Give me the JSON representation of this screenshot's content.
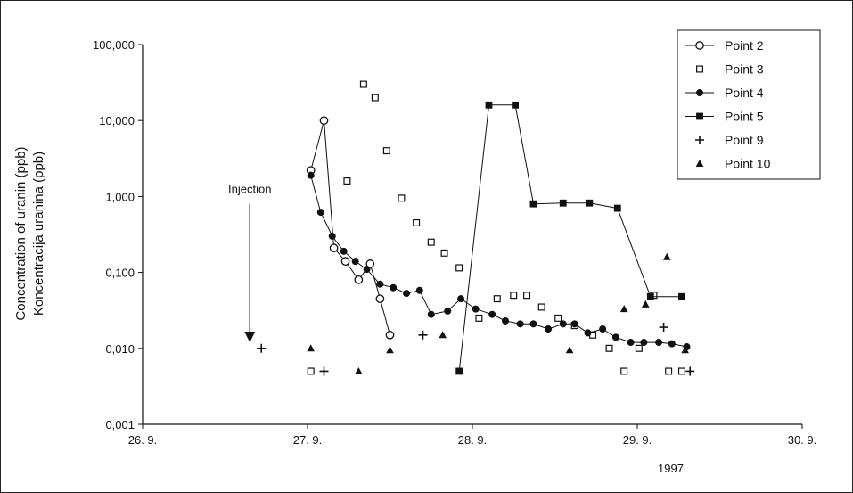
{
  "chart_data": {
    "type": "line",
    "title": "",
    "ylabel_lines": [
      "Concentration of uranin (ppb)",
      "Koncentracija uranina (ppb)"
    ],
    "xlabel": "1997",
    "y_scale": "log",
    "ylim": [
      0.001,
      100
    ],
    "xlim": [
      26.9,
      30.9
    ],
    "y_ticks": [
      {
        "value": 100,
        "label": "100,000"
      },
      {
        "value": 10,
        "label": "10,000"
      },
      {
        "value": 1,
        "label": "1,000"
      },
      {
        "value": 0.1,
        "label": "0,100"
      },
      {
        "value": 0.01,
        "label": "0,010"
      },
      {
        "value": 0.001,
        "label": "0,001"
      }
    ],
    "x_ticks": [
      {
        "value": 26.9,
        "label": "26. 9."
      },
      {
        "value": 27.9,
        "label": "27. 9."
      },
      {
        "value": 28.9,
        "label": "28. 9."
      },
      {
        "value": 29.9,
        "label": "29. 9."
      },
      {
        "value": 30.9,
        "label": "30. 9."
      }
    ],
    "grid": false,
    "legend_position": "top-right",
    "annotation": {
      "text": "Injection",
      "x": 27.55,
      "y_top": 0.8,
      "y_bottom": 0.012
    },
    "series": [
      {
        "name": "Point 2",
        "marker": "open-circle",
        "line": true,
        "points": [
          [
            27.92,
            2.2
          ],
          [
            28.0,
            10.0
          ],
          [
            28.06,
            0.21
          ],
          [
            28.13,
            0.14
          ],
          [
            28.21,
            0.08
          ],
          [
            28.28,
            0.13
          ],
          [
            28.34,
            0.045
          ],
          [
            28.4,
            0.015
          ]
        ]
      },
      {
        "name": "Point 3",
        "marker": "open-square",
        "line": false,
        "points": [
          [
            27.92,
            0.005
          ],
          [
            28.14,
            1.6
          ],
          [
            28.24,
            30.0
          ],
          [
            28.31,
            20.0
          ],
          [
            28.38,
            4.0
          ],
          [
            28.47,
            0.95
          ],
          [
            28.56,
            0.45
          ],
          [
            28.65,
            0.25
          ],
          [
            28.73,
            0.18
          ],
          [
            28.82,
            0.115
          ],
          [
            28.94,
            0.025
          ],
          [
            29.05,
            0.045
          ],
          [
            29.15,
            0.05
          ],
          [
            29.23,
            0.05
          ],
          [
            29.32,
            0.035
          ],
          [
            29.42,
            0.025
          ],
          [
            29.52,
            0.02
          ],
          [
            29.63,
            0.015
          ],
          [
            29.73,
            0.01
          ],
          [
            29.82,
            0.005
          ],
          [
            29.91,
            0.01
          ],
          [
            30.0,
            0.05
          ],
          [
            30.09,
            0.005
          ],
          [
            30.17,
            0.005
          ]
        ]
      },
      {
        "name": "Point 4",
        "marker": "filled-circle",
        "line": true,
        "points": [
          [
            27.92,
            1.9
          ],
          [
            27.98,
            0.62
          ],
          [
            28.05,
            0.3
          ],
          [
            28.12,
            0.19
          ],
          [
            28.19,
            0.14
          ],
          [
            28.26,
            0.11
          ],
          [
            28.34,
            0.07
          ],
          [
            28.42,
            0.063
          ],
          [
            28.5,
            0.053
          ],
          [
            28.58,
            0.058
          ],
          [
            28.65,
            0.028
          ],
          [
            28.75,
            0.031
          ],
          [
            28.83,
            0.045
          ],
          [
            28.92,
            0.033
          ],
          [
            29.02,
            0.028
          ],
          [
            29.1,
            0.023
          ],
          [
            29.19,
            0.021
          ],
          [
            29.27,
            0.021
          ],
          [
            29.36,
            0.018
          ],
          [
            29.45,
            0.021
          ],
          [
            29.52,
            0.021
          ],
          [
            29.6,
            0.016
          ],
          [
            29.69,
            0.018
          ],
          [
            29.77,
            0.014
          ],
          [
            29.86,
            0.012
          ],
          [
            29.94,
            0.012
          ],
          [
            30.03,
            0.012
          ],
          [
            30.11,
            0.0115
          ],
          [
            30.2,
            0.0105
          ]
        ]
      },
      {
        "name": "Point 5",
        "marker": "filled-square",
        "line": true,
        "points": [
          [
            28.82,
            0.005
          ],
          [
            29.0,
            16.0
          ],
          [
            29.16,
            16.0
          ],
          [
            29.27,
            0.8
          ],
          [
            29.45,
            0.82
          ],
          [
            29.61,
            0.82
          ],
          [
            29.78,
            0.7
          ],
          [
            29.98,
            0.048
          ],
          [
            30.17,
            0.048
          ]
        ]
      },
      {
        "name": "Point 9",
        "marker": "plus",
        "line": false,
        "points": [
          [
            27.62,
            0.01
          ],
          [
            28.0,
            0.005
          ],
          [
            28.6,
            0.015
          ],
          [
            30.06,
            0.019
          ],
          [
            30.22,
            0.005
          ]
        ]
      },
      {
        "name": "Point 10",
        "marker": "filled-triangle",
        "line": false,
        "points": [
          [
            27.92,
            0.01
          ],
          [
            28.21,
            0.005
          ],
          [
            28.4,
            0.0095
          ],
          [
            28.72,
            0.015
          ],
          [
            29.49,
            0.0095
          ],
          [
            29.82,
            0.033
          ],
          [
            29.95,
            0.038
          ],
          [
            30.08,
            0.16
          ],
          [
            30.19,
            0.0095
          ]
        ]
      }
    ]
  }
}
